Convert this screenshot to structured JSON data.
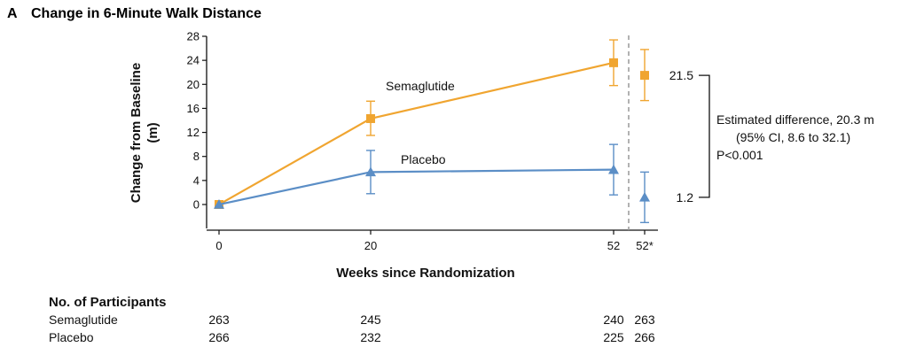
{
  "panel_title": {
    "letter": "A",
    "text": "Change in 6-Minute Walk Distance"
  },
  "chart_data": {
    "type": "line",
    "title": "Change in 6-Minute Walk Distance",
    "xlabel": "Weeks since Randomization",
    "ylabel_line1": "Change from Baseline",
    "ylabel_line2": "(m)",
    "ylim": [
      -4,
      28
    ],
    "yticks": [
      0,
      4,
      8,
      12,
      16,
      20,
      24,
      28
    ],
    "x_tick_labels": [
      "0",
      "20",
      "52",
      "52*"
    ],
    "grid": false,
    "series": [
      {
        "name": "Semaglutide",
        "color": "#F0A530",
        "marker": "square",
        "points": [
          {
            "x": "0",
            "y": 0,
            "lo": 0,
            "hi": 0
          },
          {
            "x": "20",
            "y": 14.3,
            "lo": 11.5,
            "hi": 17.2
          },
          {
            "x": "52",
            "y": 23.6,
            "lo": 19.8,
            "hi": 27.4
          }
        ],
        "estimate": {
          "x": "52*",
          "y": 21.5,
          "lo": 17.3,
          "hi": 25.8,
          "label": "21.5"
        }
      },
      {
        "name": "Placebo",
        "color": "#5B8EC6",
        "marker": "triangle",
        "points": [
          {
            "x": "0",
            "y": 0,
            "lo": 0,
            "hi": 0
          },
          {
            "x": "20",
            "y": 5.4,
            "lo": 1.8,
            "hi": 9.0
          },
          {
            "x": "52",
            "y": 5.8,
            "lo": 1.6,
            "hi": 10.0
          }
        ],
        "estimate": {
          "x": "52*",
          "y": 1.2,
          "lo": -3.0,
          "hi": 5.4,
          "label": "1.2"
        }
      }
    ],
    "annotation": {
      "line1": "Estimated difference, 20.3 m",
      "line2": "(95% CI, 8.6 to 32.1)",
      "line3": "P<0.001"
    }
  },
  "participants": {
    "header": "No. of Participants",
    "rows": [
      {
        "name": "Semaglutide",
        "values": [
          "263",
          "245",
          "240",
          "263"
        ]
      },
      {
        "name": "Placebo",
        "values": [
          "266",
          "232",
          "225",
          "266"
        ]
      }
    ]
  }
}
